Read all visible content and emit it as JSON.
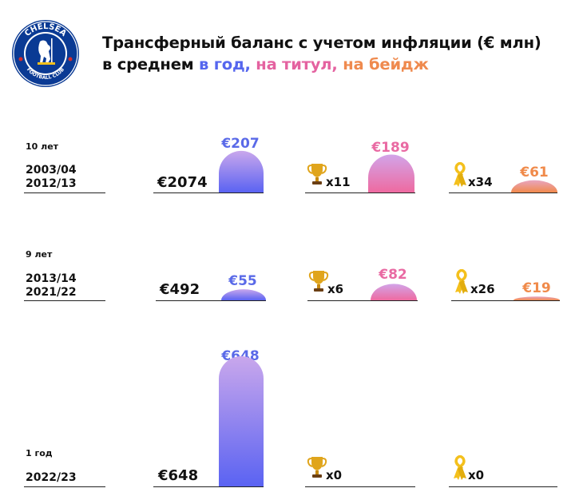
{
  "title": {
    "line1": "Трансферный баланс с учетом инфляции (€ млн)",
    "line2_prefix": "в среднем ",
    "seg_year": "в год,",
    "seg_title": " на титул,",
    "seg_badge": " на бейдж"
  },
  "logo": {
    "text_top": "CHELSEA",
    "text_bottom": "FOOTBALL CLUB",
    "icon": "chelsea-lion-crest"
  },
  "colors": {
    "blue": "#5a6ae8",
    "pink": "#e96aa3",
    "orange": "#f08a4a",
    "trophy": "#e0a51c",
    "ribbon": "#f4c01c"
  },
  "chart_data": {
    "type": "bar",
    "metrics": [
      "в год",
      "на титул",
      "на бейдж"
    ],
    "periods": [
      {
        "label": "10 лет",
        "seasons": [
          "2003/04",
          "2012/13"
        ],
        "total": "€2074",
        "per_year": 207,
        "per_year_label": "€207",
        "titles": 11,
        "titles_label": "x11",
        "per_title": 189,
        "per_title_label": "€189",
        "badges": 34,
        "badges_label": "x34",
        "per_badge": 61,
        "per_badge_label": "€61"
      },
      {
        "label": "9 лет",
        "seasons": [
          "2013/14",
          "2021/22"
        ],
        "total": "€492",
        "per_year": 55,
        "per_year_label": "€55",
        "titles": 6,
        "titles_label": "x6",
        "per_title": 82,
        "per_title_label": "€82",
        "badges": 26,
        "badges_label": "x26",
        "per_badge": 19,
        "per_badge_label": "€19"
      },
      {
        "label": "1 год",
        "seasons": [
          "2022/23"
        ],
        "total": "€648",
        "per_year": 648,
        "per_year_label": "€648",
        "titles": 0,
        "titles_label": "x0",
        "per_title": null,
        "per_title_label": "",
        "badges": 0,
        "badges_label": "x0",
        "per_badge": null,
        "per_badge_label": ""
      }
    ]
  }
}
